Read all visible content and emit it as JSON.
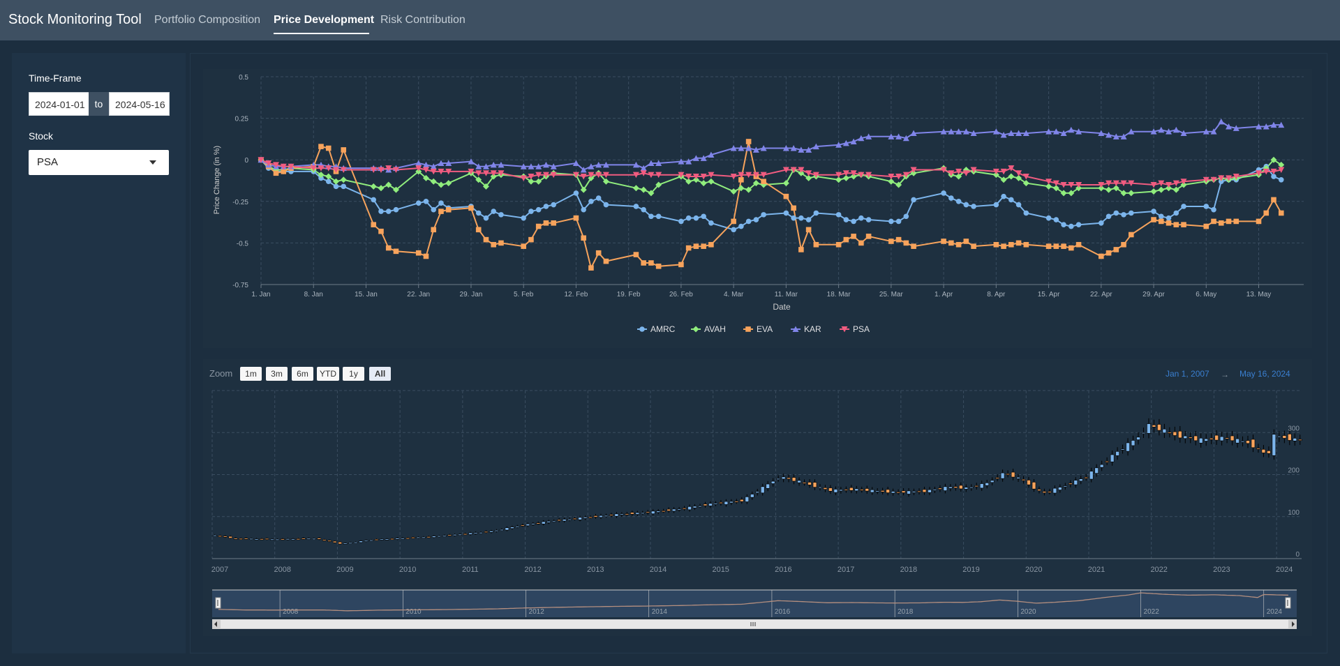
{
  "nav": {
    "brand": "Stock Monitoring Tool",
    "tabs": [
      "Portfolio Composition",
      "Price Development",
      "Risk Contribution"
    ],
    "active_tab": "Price Development"
  },
  "sidebar": {
    "timeframe_label": "Time-Frame",
    "date_from": "2024-01-01",
    "date_to": "2024-05-16",
    "to_label": "to",
    "stock_label": "Stock",
    "stock_selected": "PSA"
  },
  "colors": {
    "AMRC": "#7cb5ec",
    "AVAH": "#90ed7d",
    "EVA": "#f7a35c",
    "KAR": "#8085e9",
    "PSA": "#f15c80",
    "candle_up": "#7cb5ec",
    "candle_down": "#f7a35c"
  },
  "chart_data": [
    {
      "type": "line",
      "ylabel": "Price Change (in %)",
      "xlabel": "Date",
      "ylim": [
        -0.75,
        0.5
      ],
      "yticks": [
        "0.5",
        "0.25",
        "0",
        "-0.25",
        "-0.5",
        "-0.75"
      ],
      "xticks": [
        "1. Jan",
        "8. Jan",
        "15. Jan",
        "22. Jan",
        "29. Jan",
        "5. Feb",
        "12. Feb",
        "19. Feb",
        "26. Feb",
        "4. Mar",
        "11. Mar",
        "18. Mar",
        "25. Mar",
        "1. Apr",
        "8. Apr",
        "15. Apr",
        "22. Apr",
        "29. Apr",
        "6. May",
        "13. May"
      ],
      "x_days": [
        1,
        2,
        3,
        4,
        5,
        8,
        9,
        10,
        11,
        12,
        16,
        17,
        18,
        19,
        22,
        23,
        24,
        25,
        26,
        29,
        30,
        31,
        32,
        33,
        36,
        37,
        38,
        39,
        40,
        43,
        44,
        45,
        46,
        47,
        51,
        52,
        53,
        54,
        57,
        58,
        59,
        60,
        61,
        64,
        65,
        66,
        67,
        68,
        71,
        72,
        73,
        74,
        75,
        78,
        79,
        80,
        81,
        82,
        85,
        86,
        87,
        88,
        92,
        93,
        94,
        95,
        96,
        99,
        100,
        101,
        102,
        103,
        106,
        107,
        108,
        109,
        110,
        113,
        114,
        115,
        116,
        117,
        120,
        121,
        122,
        123,
        124,
        127,
        128,
        129,
        130,
        131,
        134,
        135,
        136,
        137
      ],
      "legend": [
        "AMRC",
        "AVAH",
        "EVA",
        "KAR",
        "PSA"
      ],
      "legend_position": "bottom",
      "series": [
        {
          "name": "AMRC",
          "values": [
            0,
            -0.05,
            -0.07,
            -0.07,
            -0.07,
            -0.07,
            -0.11,
            -0.13,
            -0.16,
            -0.16,
            -0.24,
            -0.31,
            -0.31,
            -0.3,
            -0.26,
            -0.25,
            -0.3,
            -0.26,
            -0.29,
            -0.28,
            -0.32,
            -0.35,
            -0.31,
            -0.33,
            -0.35,
            -0.31,
            -0.3,
            -0.28,
            -0.27,
            -0.2,
            -0.3,
            -0.25,
            -0.23,
            -0.27,
            -0.28,
            -0.3,
            -0.34,
            -0.34,
            -0.37,
            -0.35,
            -0.35,
            -0.34,
            -0.38,
            -0.42,
            -0.4,
            -0.37,
            -0.36,
            -0.33,
            -0.32,
            -0.35,
            -0.35,
            -0.36,
            -0.32,
            -0.33,
            -0.36,
            -0.37,
            -0.35,
            -0.36,
            -0.37,
            -0.37,
            -0.34,
            -0.24,
            -0.2,
            -0.23,
            -0.25,
            -0.27,
            -0.28,
            -0.27,
            -0.22,
            -0.24,
            -0.27,
            -0.32,
            -0.35,
            -0.36,
            -0.39,
            -0.4,
            -0.39,
            -0.38,
            -0.34,
            -0.32,
            -0.33,
            -0.32,
            -0.31,
            -0.34,
            -0.35,
            -0.32,
            -0.28,
            -0.28,
            -0.3,
            -0.13,
            -0.12,
            -0.12,
            -0.06,
            -0.04,
            -0.1,
            -0.12
          ]
        },
        {
          "name": "AVAH",
          "values": [
            0,
            -0.04,
            -0.06,
            -0.06,
            -0.05,
            -0.06,
            -0.09,
            -0.1,
            -0.13,
            -0.12,
            -0.16,
            -0.17,
            -0.15,
            -0.18,
            -0.07,
            -0.11,
            -0.13,
            -0.15,
            -0.14,
            -0.08,
            -0.12,
            -0.16,
            -0.1,
            -0.09,
            -0.1,
            -0.13,
            -0.13,
            -0.1,
            -0.08,
            -0.09,
            -0.18,
            -0.11,
            -0.08,
            -0.13,
            -0.17,
            -0.18,
            -0.2,
            -0.15,
            -0.1,
            -0.13,
            -0.12,
            -0.14,
            -0.13,
            -0.19,
            -0.17,
            -0.18,
            -0.14,
            -0.15,
            -0.14,
            -0.06,
            -0.08,
            -0.11,
            -0.1,
            -0.12,
            -0.11,
            -0.1,
            -0.09,
            -0.1,
            -0.13,
            -0.15,
            -0.1,
            -0.08,
            -0.05,
            -0.09,
            -0.1,
            -0.06,
            -0.07,
            -0.09,
            -0.12,
            -0.1,
            -0.11,
            -0.14,
            -0.16,
            -0.17,
            -0.2,
            -0.2,
            -0.17,
            -0.17,
            -0.18,
            -0.17,
            -0.2,
            -0.2,
            -0.19,
            -0.18,
            -0.17,
            -0.18,
            -0.15,
            -0.13,
            -0.12,
            -0.11,
            -0.12,
            -0.11,
            -0.09,
            -0.05,
            0,
            -0.03
          ]
        },
        {
          "name": "EVA",
          "values": [
            0,
            -0.04,
            -0.08,
            -0.07,
            -0.05,
            -0.04,
            0.08,
            0.07,
            -0.07,
            0.06,
            -0.39,
            -0.43,
            -0.53,
            -0.55,
            -0.56,
            -0.58,
            -0.42,
            -0.31,
            -0.3,
            -0.29,
            -0.42,
            -0.48,
            -0.51,
            -0.5,
            -0.52,
            -0.48,
            -0.4,
            -0.38,
            -0.38,
            -0.35,
            -0.47,
            -0.65,
            -0.56,
            -0.61,
            -0.57,
            -0.62,
            -0.62,
            -0.64,
            -0.63,
            -0.53,
            -0.52,
            -0.52,
            -0.51,
            -0.37,
            -0.12,
            0.11,
            -0.1,
            -0.13,
            -0.22,
            -0.29,
            -0.54,
            -0.42,
            -0.51,
            -0.51,
            -0.48,
            -0.46,
            -0.5,
            -0.46,
            -0.49,
            -0.48,
            -0.5,
            -0.52,
            -0.49,
            -0.5,
            -0.51,
            -0.49,
            -0.52,
            -0.51,
            -0.52,
            -0.51,
            -0.5,
            -0.51,
            -0.52,
            -0.52,
            -0.52,
            -0.53,
            -0.51,
            -0.58,
            -0.56,
            -0.54,
            -0.51,
            -0.45,
            -0.36,
            -0.37,
            -0.38,
            -0.39,
            -0.39,
            -0.4,
            -0.37,
            -0.38,
            -0.37,
            -0.37,
            -0.37,
            -0.32,
            -0.24,
            -0.32
          ]
        },
        {
          "name": "KAR",
          "values": [
            0,
            -0.03,
            -0.04,
            -0.04,
            -0.04,
            -0.03,
            -0.03,
            -0.04,
            -0.04,
            -0.05,
            -0.05,
            -0.05,
            -0.06,
            -0.05,
            -0.02,
            -0.03,
            -0.04,
            -0.02,
            -0.02,
            -0.01,
            -0.04,
            -0.04,
            -0.03,
            -0.03,
            -0.04,
            -0.04,
            -0.04,
            -0.03,
            -0.04,
            -0.02,
            -0.06,
            -0.04,
            -0.03,
            -0.03,
            -0.03,
            -0.05,
            -0.02,
            -0.02,
            -0.01,
            -0.01,
            0.01,
            0.01,
            0.03,
            0.07,
            0.07,
            0.07,
            0.06,
            0.07,
            0.07,
            0.07,
            0.06,
            0.06,
            0.08,
            0.09,
            0.1,
            0.11,
            0.13,
            0.14,
            0.14,
            0.14,
            0.13,
            0.16,
            0.17,
            0.17,
            0.17,
            0.17,
            0.16,
            0.17,
            0.15,
            0.16,
            0.16,
            0.16,
            0.17,
            0.17,
            0.16,
            0.18,
            0.17,
            0.16,
            0.15,
            0.14,
            0.14,
            0.17,
            0.17,
            0.18,
            0.17,
            0.18,
            0.16,
            0.17,
            0.17,
            0.23,
            0.2,
            0.19,
            0.2,
            0.2,
            0.21,
            0.21
          ]
        },
        {
          "name": "PSA",
          "values": [
            0,
            -0.02,
            -0.03,
            -0.04,
            -0.04,
            -0.05,
            -0.05,
            -0.05,
            -0.06,
            -0.06,
            -0.06,
            -0.06,
            -0.05,
            -0.06,
            -0.05,
            -0.06,
            -0.07,
            -0.07,
            -0.07,
            -0.07,
            -0.08,
            -0.08,
            -0.08,
            -0.08,
            -0.11,
            -0.1,
            -0.09,
            -0.09,
            -0.09,
            -0.09,
            -0.1,
            -0.09,
            -0.09,
            -0.09,
            -0.09,
            -0.08,
            -0.09,
            -0.09,
            -0.09,
            -0.1,
            -0.1,
            -0.1,
            -0.09,
            -0.1,
            -0.09,
            -0.09,
            -0.09,
            -0.09,
            -0.06,
            -0.06,
            -0.06,
            -0.08,
            -0.09,
            -0.09,
            -0.08,
            -0.08,
            -0.09,
            -0.09,
            -0.1,
            -0.1,
            -0.09,
            -0.06,
            -0.06,
            -0.08,
            -0.07,
            -0.08,
            -0.06,
            -0.07,
            -0.07,
            -0.05,
            -0.08,
            -0.1,
            -0.13,
            -0.14,
            -0.15,
            -0.15,
            -0.15,
            -0.15,
            -0.14,
            -0.14,
            -0.14,
            -0.14,
            -0.15,
            -0.14,
            -0.15,
            -0.14,
            -0.13,
            -0.12,
            -0.12,
            -0.11,
            -0.11,
            -0.1,
            -0.08,
            -0.07,
            -0.07,
            -0.06
          ]
        }
      ]
    },
    {
      "type": "candlestick",
      "zoom_label": "Zoom",
      "zoom_buttons": [
        "1m",
        "3m",
        "6m",
        "YTD",
        "1y",
        "All"
      ],
      "zoom_selected": "All",
      "range_from": "Jan 1, 2007",
      "range_arrow": "→",
      "range_to": "May 16, 2024",
      "yticks": [
        "300",
        "200",
        "100",
        "0"
      ],
      "ylim": [
        0,
        400
      ],
      "xticks": [
        "2007",
        "2008",
        "2009",
        "2010",
        "2011",
        "2012",
        "2013",
        "2014",
        "2015",
        "2016",
        "2017",
        "2018",
        "2019",
        "2020",
        "2021",
        "2022",
        "2023",
        "2024"
      ],
      "xlim": [
        2007,
        2024.4
      ],
      "navigator_ticks": [
        "2008",
        "2010",
        "2012",
        "2014",
        "2016",
        "2018",
        "2020",
        "2022",
        "2024"
      ],
      "trend_anchors": [
        [
          2007.0,
          57
        ],
        [
          2007.4,
          48
        ],
        [
          2008.0,
          46
        ],
        [
          2008.7,
          48
        ],
        [
          2009.1,
          35
        ],
        [
          2009.6,
          45
        ],
        [
          2010.0,
          48
        ],
        [
          2010.5,
          52
        ],
        [
          2011.0,
          58
        ],
        [
          2011.5,
          65
        ],
        [
          2012.0,
          80
        ],
        [
          2012.5,
          90
        ],
        [
          2013.0,
          98
        ],
        [
          2013.5,
          105
        ],
        [
          2014.0,
          110
        ],
        [
          2014.5,
          118
        ],
        [
          2015.0,
          130
        ],
        [
          2015.5,
          138
        ],
        [
          2015.9,
          175
        ],
        [
          2016.1,
          195
        ],
        [
          2016.5,
          180
        ],
        [
          2016.9,
          162
        ],
        [
          2017.3,
          165
        ],
        [
          2017.7,
          160
        ],
        [
          2018.0,
          158
        ],
        [
          2018.4,
          160
        ],
        [
          2018.8,
          170
        ],
        [
          2019.1,
          168
        ],
        [
          2019.4,
          178
        ],
        [
          2019.7,
          205
        ],
        [
          2020.0,
          185
        ],
        [
          2020.3,
          155
        ],
        [
          2020.6,
          170
        ],
        [
          2021.0,
          195
        ],
        [
          2021.5,
          255
        ],
        [
          2021.8,
          285
        ],
        [
          2022.0,
          318
        ],
        [
          2022.4,
          295
        ],
        [
          2022.8,
          282
        ],
        [
          2023.2,
          288
        ],
        [
          2023.6,
          275
        ],
        [
          2023.9,
          245
        ],
        [
          2024.0,
          292
        ],
        [
          2024.4,
          282
        ]
      ]
    }
  ]
}
